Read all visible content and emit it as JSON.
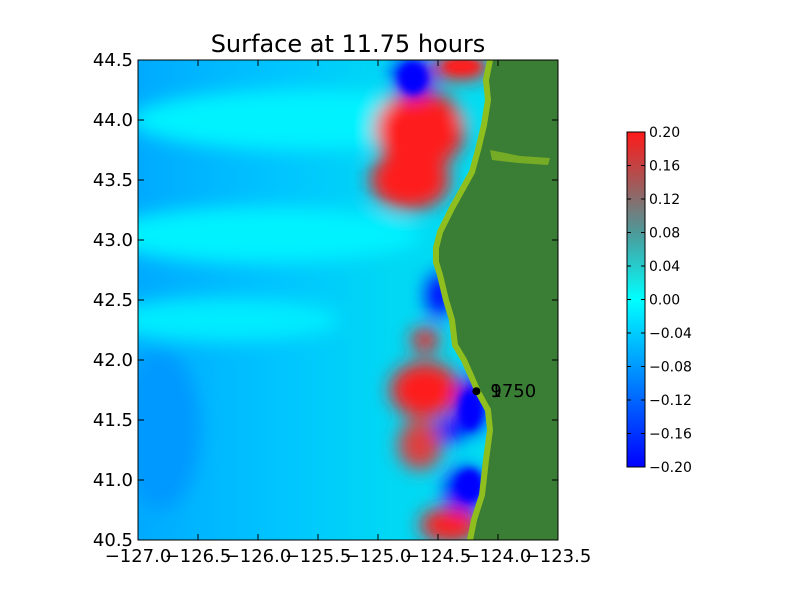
{
  "chart_data": {
    "type": "heatmap",
    "title": "Surface at 11.75 hours",
    "xlabel": "",
    "ylabel": "",
    "xlim": [
      -127.0,
      -123.5
    ],
    "ylim": [
      40.5,
      44.5
    ],
    "x_ticks": [
      "−127.0",
      "−126.5",
      "−126.0",
      "−125.5",
      "−125.0",
      "−124.5",
      "−124.0",
      "−123.5"
    ],
    "y_ticks": [
      "40.5",
      "41.0",
      "41.5",
      "42.0",
      "42.5",
      "43.0",
      "43.5",
      "44.0",
      "44.5"
    ],
    "colorbar": {
      "min": -0.2,
      "max": 0.2,
      "ticks": [
        "0.20",
        "0.16",
        "0.12",
        "0.08",
        "0.04",
        "0.00",
        "−0.04",
        "−0.08",
        "−0.12",
        "−0.16",
        "−0.20"
      ]
    },
    "colors": {
      "land": "#3a7d35",
      "coast": "#8fbf1f",
      "max": "#ff1a1a",
      "min": "#0000ff",
      "zero": "#00ffff"
    },
    "gauge": {
      "lon": -124.18,
      "lat": 41.74,
      "labels": [
        "1",
        "9750"
      ]
    }
  }
}
